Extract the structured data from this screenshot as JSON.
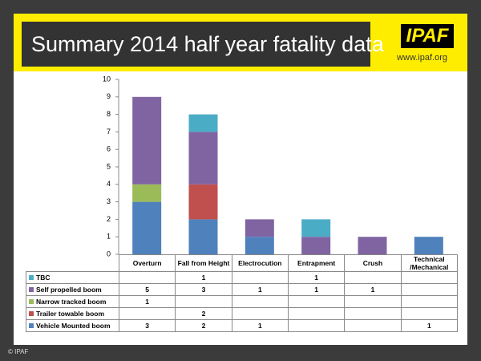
{
  "logo": "IPAF",
  "website": "www.ipaf.org",
  "footer": "© IPAF",
  "chart_data": {
    "type": "stacked_bar",
    "title": "Summary 2014 half year fatality data",
    "categories": [
      "Overturn",
      "Fall from Height",
      "Electrocution",
      "Entrapment",
      "Crush",
      "Technical /Mechanical"
    ],
    "series": [
      {
        "name": "Vehicle Mounted boom",
        "color": "#4f81bd",
        "values": [
          3,
          2,
          1,
          null,
          null,
          1
        ]
      },
      {
        "name": "Trailer towable boom",
        "color": "#c0504d",
        "values": [
          null,
          2,
          null,
          null,
          null,
          null
        ]
      },
      {
        "name": "Narrow tracked boom",
        "color": "#9bbb59",
        "values": [
          1,
          null,
          null,
          null,
          null,
          null
        ]
      },
      {
        "name": "Self propelled boom",
        "color": "#8064a2",
        "values": [
          5,
          3,
          1,
          1,
          1,
          null
        ]
      },
      {
        "name": "TBC",
        "color": "#4bacc6",
        "values": [
          null,
          1,
          null,
          1,
          null,
          null
        ]
      }
    ],
    "ylim": [
      0,
      10
    ],
    "yticks": [
      0,
      1,
      2,
      3,
      4,
      5,
      6,
      7,
      8,
      9,
      10
    ],
    "grid": false
  }
}
